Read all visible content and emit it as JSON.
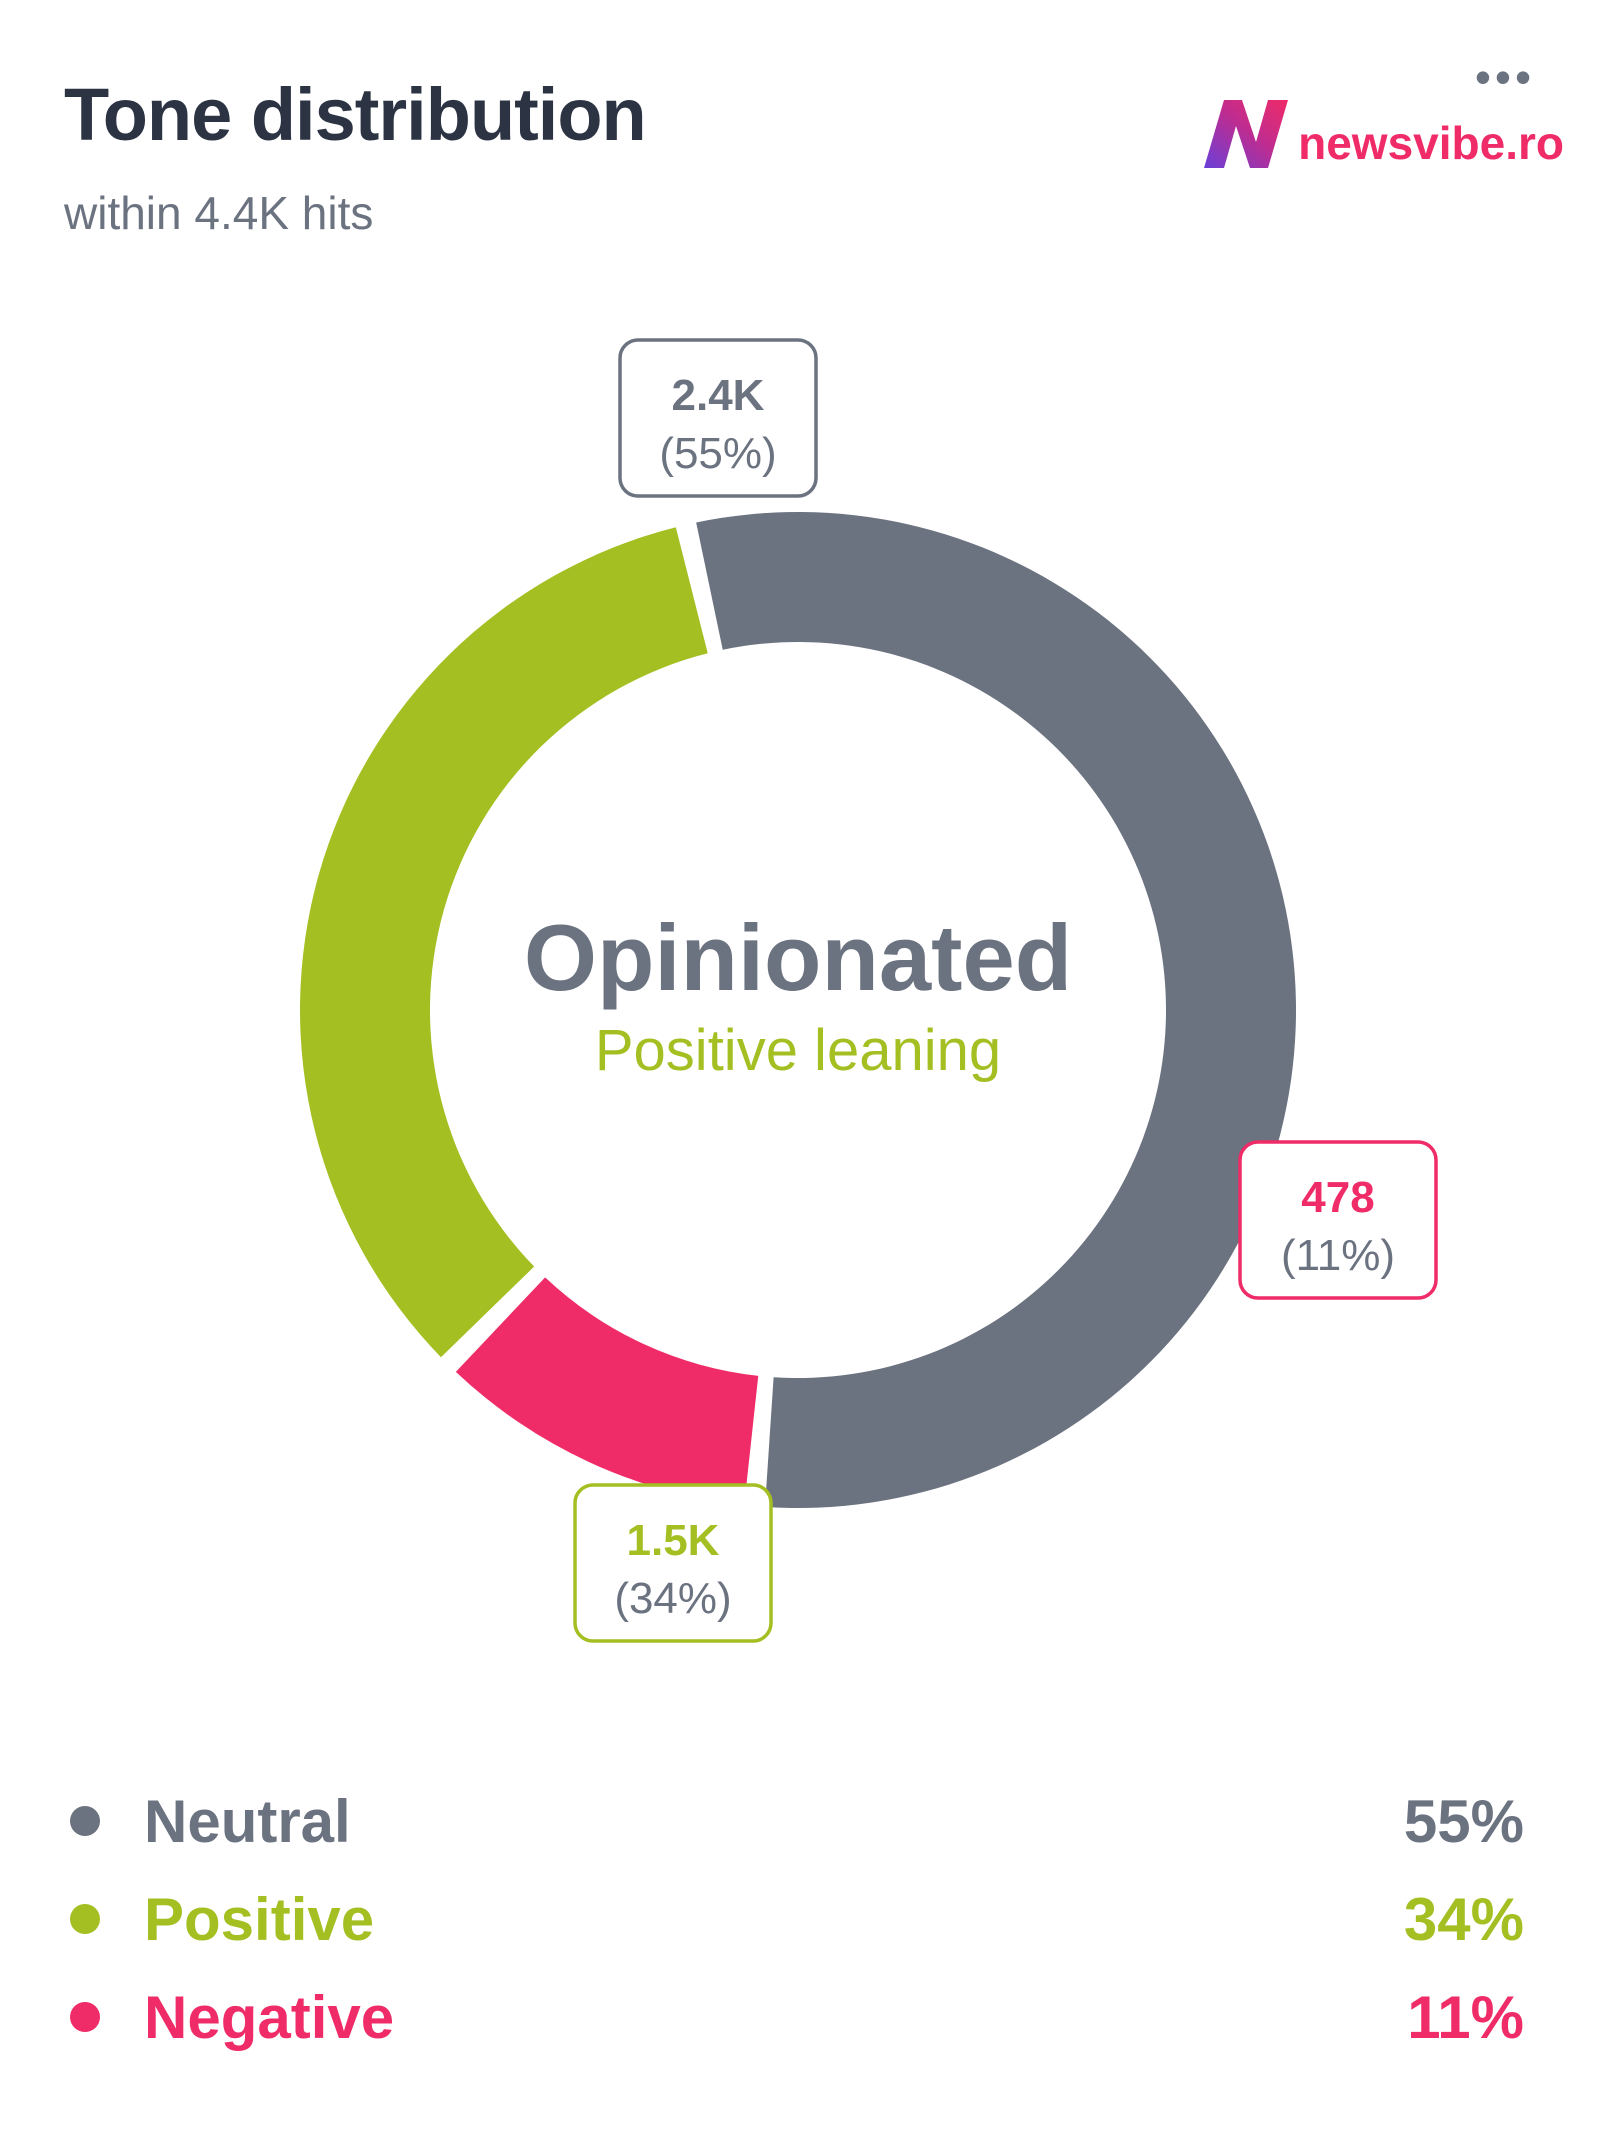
{
  "header": {
    "title": "Tone distribution",
    "subtitle": "within 4.4K hits",
    "menu_label": "•••",
    "brand": {
      "text": "newsvibe.ro",
      "icon": "newsvibe-logo-icon"
    }
  },
  "center": {
    "primary": "Opinionated",
    "secondary": "Positive leaning"
  },
  "colors": {
    "neutral": "#6b7280",
    "positive": "#a4bf22",
    "negative": "#ef2b68",
    "title": "#2c3444"
  },
  "chart_data": {
    "type": "pie",
    "variant": "donut",
    "total": "4.4K",
    "series": [
      {
        "name": "Neutral",
        "count": "2.4K",
        "percent": 55,
        "label": "55%",
        "callout_pct": "(55%)",
        "color": "#6b7280"
      },
      {
        "name": "Negative",
        "count": "478",
        "percent": 11,
        "label": "11%",
        "callout_pct": "(11%)",
        "color": "#ef2b68"
      },
      {
        "name": "Positive",
        "count": "1.5K",
        "percent": 34,
        "label": "34%",
        "callout_pct": "(34%)",
        "color": "#a4bf22"
      }
    ],
    "legend_order": [
      0,
      2,
      1
    ]
  }
}
